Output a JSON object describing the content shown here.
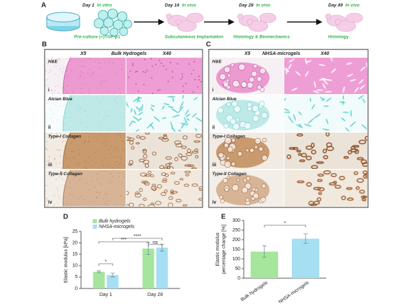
{
  "panel_a": {
    "label": "A",
    "steps": [
      {
        "day": "Day 1",
        "phase": "In vitro",
        "caption": "Pre-culture (+)TGF-β1"
      },
      {
        "day": "Day 14",
        "phase": "In vivo",
        "caption": "Subcutaneous Implantation"
      },
      {
        "day": "Day 28",
        "phase": "In vivo",
        "caption": "Histology & Biomechanics"
      },
      {
        "day": "Day 49",
        "phase": "In vivo",
        "caption": "Histology"
      }
    ]
  },
  "panel_b": {
    "label": "B",
    "title": "Bulk Hydrogels",
    "magnifications": [
      "X5",
      "X40"
    ],
    "stains": [
      {
        "name": "H&E",
        "numeral": "i"
      },
      {
        "name": "Alcian Blue",
        "numeral": "ii"
      },
      {
        "name": "Type-I Collagen",
        "numeral": "iii"
      },
      {
        "name": "Type-II Collagen",
        "numeral": "iv"
      }
    ]
  },
  "panel_c": {
    "label": "C",
    "title": "NHSA-microgels",
    "magnifications": [
      "X5",
      "X40"
    ],
    "stains": [
      {
        "name": "H&E",
        "numeral": "i"
      },
      {
        "name": "Alcian Blue",
        "numeral": "ii"
      },
      {
        "name": "Type-I Collagen",
        "numeral": "iii"
      },
      {
        "name": "Type-II Collagen",
        "numeral": "iv"
      }
    ]
  },
  "chart_data": [
    {
      "type": "bar",
      "label": "D",
      "ylabel": "Elastic modulus [kPa]",
      "categories": [
        "Day 1",
        "Day 28"
      ],
      "series": [
        {
          "name": "Bulk hydrogels",
          "color": "#a6e59c",
          "values": [
            7.3,
            17.5
          ],
          "errors": [
            0.4,
            2.6
          ]
        },
        {
          "name": "NHSA-microgels",
          "color": "#a6def2",
          "values": [
            5.9,
            17.9
          ],
          "errors": [
            0.8,
            1.5
          ]
        }
      ],
      "ylim": [
        0,
        25
      ],
      "yticks": [
        0,
        5,
        10,
        15,
        20,
        25
      ],
      "annotations": [
        "*",
        "***",
        "****",
        "ns"
      ]
    },
    {
      "type": "bar",
      "label": "E",
      "ylabel": "Elastic modulus percentage change [%]",
      "categories": [
        "Bulk hydrogels",
        "NHSA-microgels"
      ],
      "series": [
        {
          "colors": [
            "#a6e59c",
            "#a6def2"
          ],
          "values": [
            138,
            205
          ],
          "errors": [
            30,
            25
          ]
        }
      ],
      "ylim": [
        0,
        300
      ],
      "yticks": [
        0,
        50,
        100,
        150,
        200,
        250,
        300
      ],
      "annotations": [
        "*"
      ]
    }
  ]
}
